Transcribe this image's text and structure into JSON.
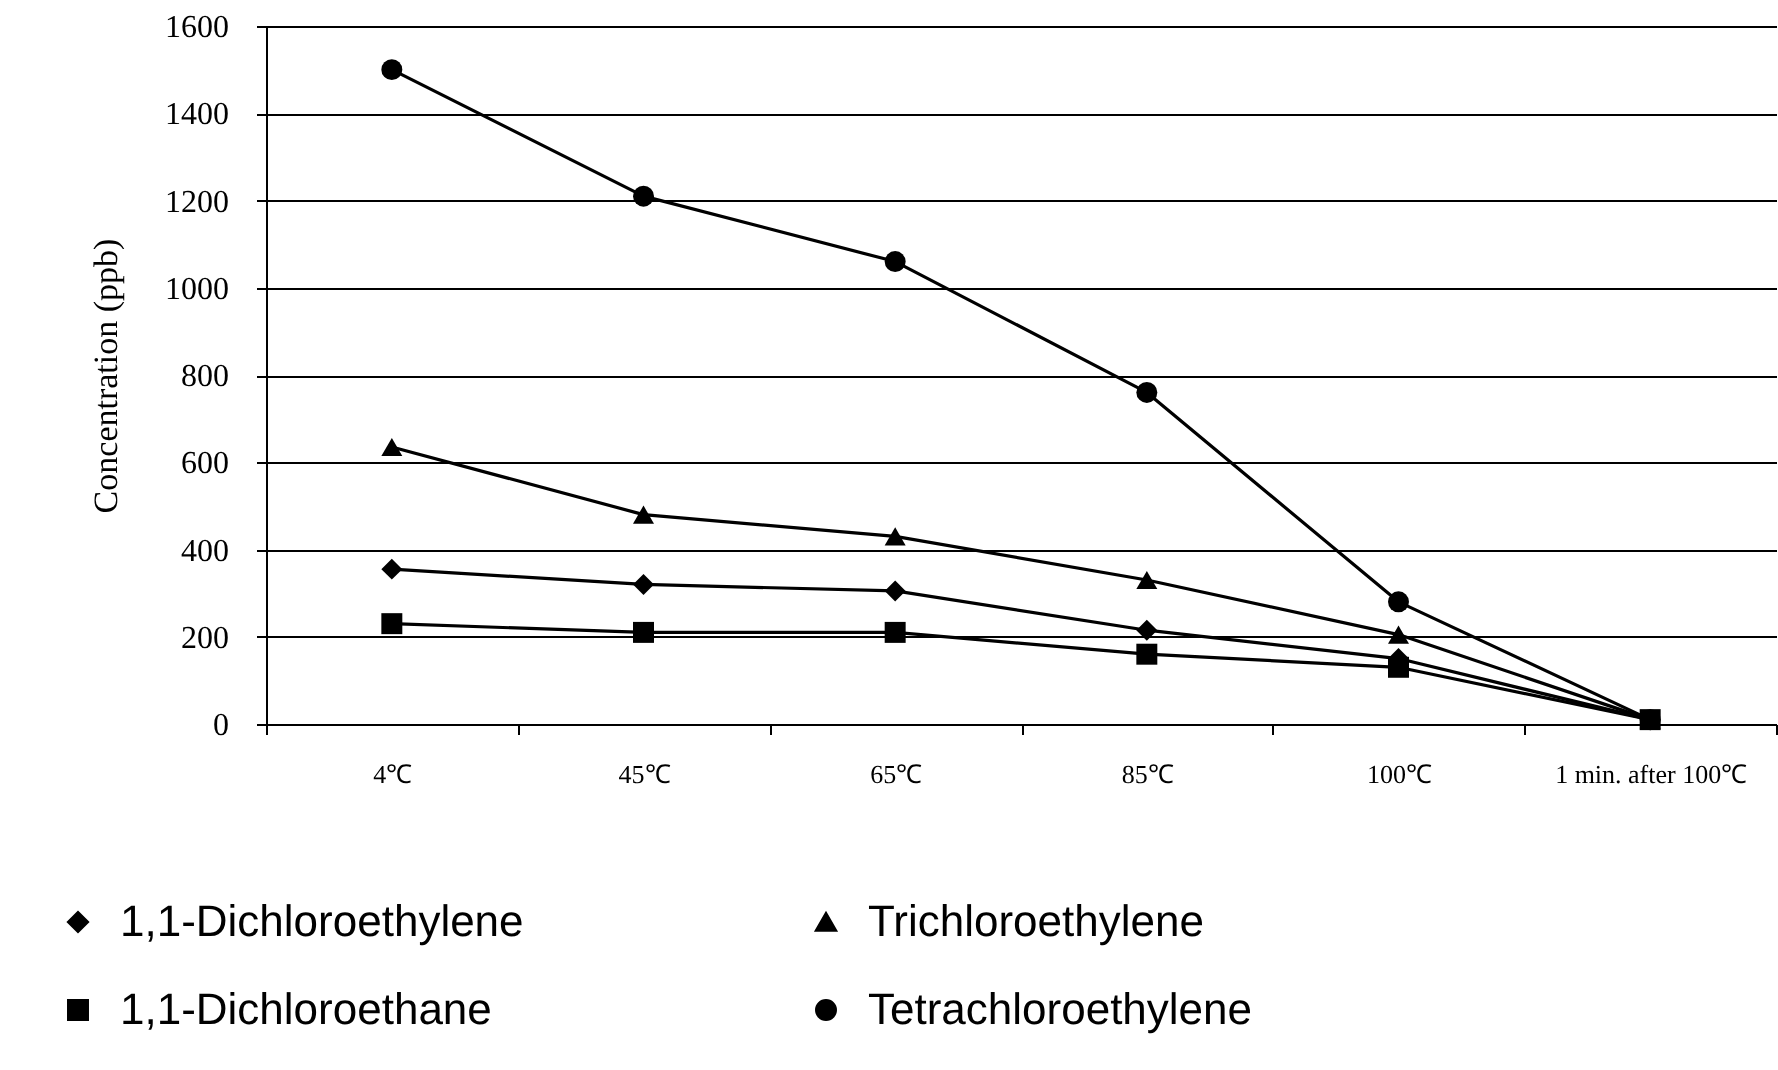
{
  "chart_data": {
    "type": "line",
    "ylabel": "Concentration (ppb)",
    "categories": [
      "4℃",
      "45℃",
      "65℃",
      "85℃",
      "100℃",
      "1 min. after 100℃"
    ],
    "series": [
      {
        "name": "1,1-Dichloroethylene",
        "color": "#000000",
        "marker": "diamond",
        "values": [
          355,
          320,
          305,
          215,
          150,
          10
        ]
      },
      {
        "name": "1,1-Dichloroethane",
        "color": "#000000",
        "marker": "square",
        "values": [
          230,
          210,
          210,
          160,
          130,
          10
        ]
      },
      {
        "name": "Trichloroethylene",
        "color": "#000000",
        "marker": "triangle",
        "values": [
          635,
          480,
          430,
          330,
          205,
          10
        ]
      },
      {
        "name": "Tetrachloroethylene",
        "color": "#000000",
        "marker": "circle",
        "values": [
          1500,
          1210,
          1060,
          760,
          280,
          10
        ]
      }
    ],
    "ylim": [
      0,
      1600
    ],
    "yticks": [
      0,
      200,
      400,
      600,
      800,
      1000,
      1200,
      1400,
      1600
    ],
    "grid": "y",
    "legend": "bottom",
    "line_style": "solid"
  }
}
